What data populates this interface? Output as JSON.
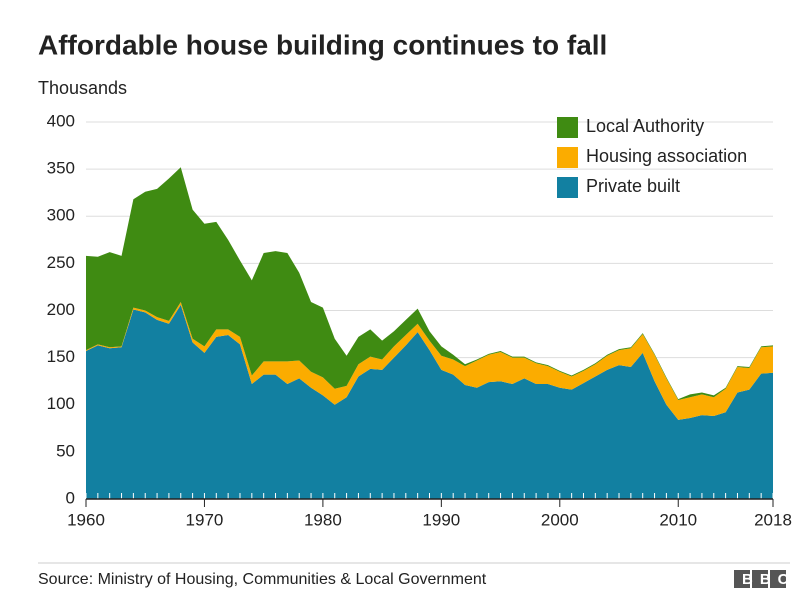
{
  "chart_data": {
    "type": "stacked_area",
    "title": "Affordable house building continues to fall",
    "subtitle": "Thousands",
    "source": "Source: Ministry of Housing, Communities & Local Government",
    "logo": "BBC",
    "x": [
      1960,
      1961,
      1962,
      1963,
      1964,
      1965,
      1966,
      1967,
      1968,
      1969,
      1970,
      1971,
      1972,
      1973,
      1974,
      1975,
      1976,
      1977,
      1978,
      1979,
      1980,
      1981,
      1982,
      1983,
      1984,
      1985,
      1986,
      1987,
      1988,
      1989,
      1990,
      1991,
      1992,
      1993,
      1994,
      1995,
      1996,
      1997,
      1998,
      1999,
      2000,
      2001,
      2002,
      2003,
      2004,
      2005,
      2006,
      2007,
      2008,
      2009,
      2010,
      2011,
      2012,
      2013,
      2014,
      2015,
      2016,
      2017,
      2018
    ],
    "series": [
      {
        "name": "Local Authority",
        "color": "#3f8b12",
        "values": [
          100,
          93,
          101,
          96,
          115,
          126,
          136,
          151,
          143,
          137,
          130,
          114,
          95,
          81,
          101,
          115,
          117,
          115,
          93,
          74,
          74,
          53,
          32,
          29,
          29,
          20,
          16,
          16,
          16,
          10,
          10,
          5,
          2,
          1,
          1,
          1,
          1,
          1,
          1,
          1,
          1,
          1,
          1,
          1,
          1,
          1,
          1,
          1,
          1,
          1,
          1,
          3,
          2,
          2,
          1,
          1,
          1,
          1,
          1
        ]
      },
      {
        "name": "Housing association",
        "color": "#fbac00",
        "values": [
          1,
          1,
          1,
          1,
          2,
          2,
          3,
          3,
          3,
          4,
          7,
          8,
          6,
          8,
          9,
          14,
          14,
          24,
          19,
          17,
          19,
          17,
          12,
          13,
          13,
          11,
          12,
          11,
          9,
          10,
          15,
          16,
          20,
          29,
          29,
          31,
          28,
          22,
          22,
          19,
          17,
          14,
          13,
          13,
          15,
          16,
          20,
          20,
          28,
          28,
          21,
          22,
          22,
          20,
          25,
          27,
          23,
          28,
          28
        ]
      },
      {
        "name": "Private built",
        "color": "#1280a1",
        "values": [
          157,
          163,
          160,
          161,
          201,
          198,
          190,
          186,
          206,
          166,
          155,
          172,
          174,
          164,
          122,
          132,
          132,
          122,
          128,
          118,
          110,
          100,
          108,
          130,
          138,
          137,
          150,
          163,
          177,
          158,
          137,
          132,
          121,
          118,
          124,
          125,
          122,
          128,
          122,
          122,
          118,
          116,
          123,
          130,
          137,
          142,
          140,
          155,
          125,
          100,
          84,
          86,
          89,
          88,
          92,
          113,
          116,
          133,
          134
        ]
      }
    ],
    "xlim": [
      1960,
      2018
    ],
    "xticks": [
      1960,
      1970,
      1980,
      1990,
      2000,
      2010,
      2018
    ],
    "ylim": [
      0,
      400
    ],
    "yticks": [
      0,
      50,
      100,
      150,
      200,
      250,
      300,
      350,
      400
    ],
    "grid": true,
    "legend": "top-right"
  }
}
